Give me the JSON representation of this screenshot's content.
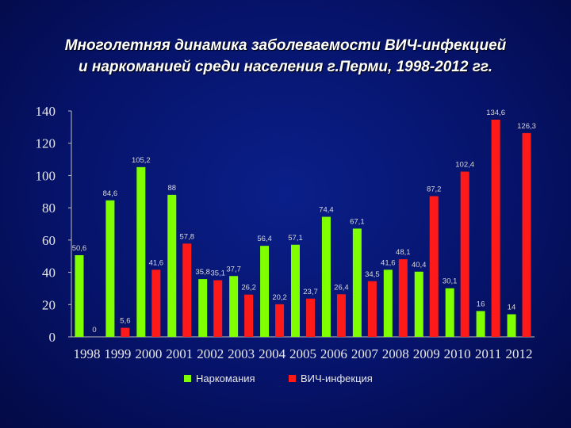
{
  "title": {
    "line1": "Многолетняя динамика заболеваемости ВИЧ-инфекцией",
    "line2": "и наркоманией среди населения г.Перми, 1998-2012 гг."
  },
  "chart_data": {
    "type": "bar",
    "categories": [
      "1998",
      "1999",
      "2000",
      "2001",
      "2002",
      "2003",
      "2004",
      "2005",
      "2006",
      "2007",
      "2008",
      "2009",
      "2010",
      "2011",
      "2012"
    ],
    "series": [
      {
        "name": "Наркомания",
        "color": "#7fff00",
        "values": [
          50.6,
          84.6,
          105.2,
          88,
          35.8,
          37.7,
          56.4,
          57.1,
          74.4,
          67.1,
          41.6,
          40.4,
          30.1,
          16,
          14
        ],
        "labels": [
          "50,6",
          "84,6",
          "105,2",
          "88",
          "35,8",
          "37,7",
          "56,4",
          "57,1",
          "74,4",
          "67,1",
          "41,6",
          "40,4",
          "30,1",
          "16",
          "14"
        ]
      },
      {
        "name": "ВИЧ-инфекция",
        "color": "#ff1a1a",
        "values": [
          0,
          5.6,
          41.6,
          57.8,
          35.1,
          26.2,
          20.2,
          23.7,
          26.4,
          34.5,
          48.1,
          87.2,
          102.4,
          134.6,
          126.3
        ],
        "labels": [
          "0",
          "5,6",
          "41,6",
          "57,8",
          "35,1",
          "26,2",
          "20,2",
          "23,7",
          "26,4",
          "34,5",
          "48,1",
          "87,2",
          "102,4",
          "134,6",
          "126,3"
        ]
      }
    ],
    "yticks": [
      "0",
      "20",
      "40",
      "60",
      "80",
      "100",
      "120",
      "140"
    ],
    "ylim": [
      0,
      140
    ],
    "legend_position": "bottom",
    "grid": false
  }
}
